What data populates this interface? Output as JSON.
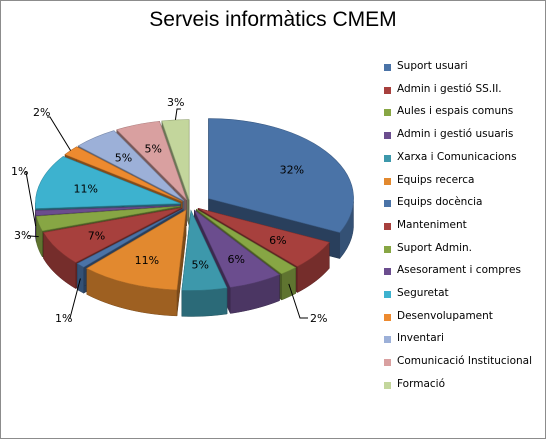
{
  "chart_data": {
    "type": "pie",
    "title": "Serveis informàtics CMEM",
    "legend_position": "right",
    "categories": [
      "Suport usuari",
      "Admin i gestió SS.II.",
      "Aules i espais comuns",
      "Admin i gestió usuaris",
      "Xarxa i Comunicacions",
      "Equips recerca",
      "Equips docència",
      "Manteniment",
      "Suport Admin.",
      "Asesorament i compres",
      "Seguretat",
      "Desenvolupament",
      "Inventari",
      "Comunicació Institucional",
      "Formació"
    ],
    "values": [
      32,
      6,
      2,
      6,
      5,
      11,
      1,
      7,
      3,
      1,
      11,
      2,
      5,
      5,
      3
    ],
    "labels": [
      "32%",
      "6%",
      "2%",
      "6%",
      "5%",
      "11%",
      "1%",
      "7%",
      "3%",
      "1%",
      "11%",
      "2%",
      "5%",
      "5%",
      "3%"
    ],
    "colors": [
      "#4a73a7",
      "#a7403d",
      "#87a644",
      "#6b4d8e",
      "#3d98ab",
      "#e2892f",
      "#4a73a7",
      "#a7403d",
      "#87a644",
      "#6b4d8e",
      "#3db2cf",
      "#ed8a2f",
      "#9cb0d8",
      "#d9a0a0",
      "#c3d69c"
    ]
  }
}
